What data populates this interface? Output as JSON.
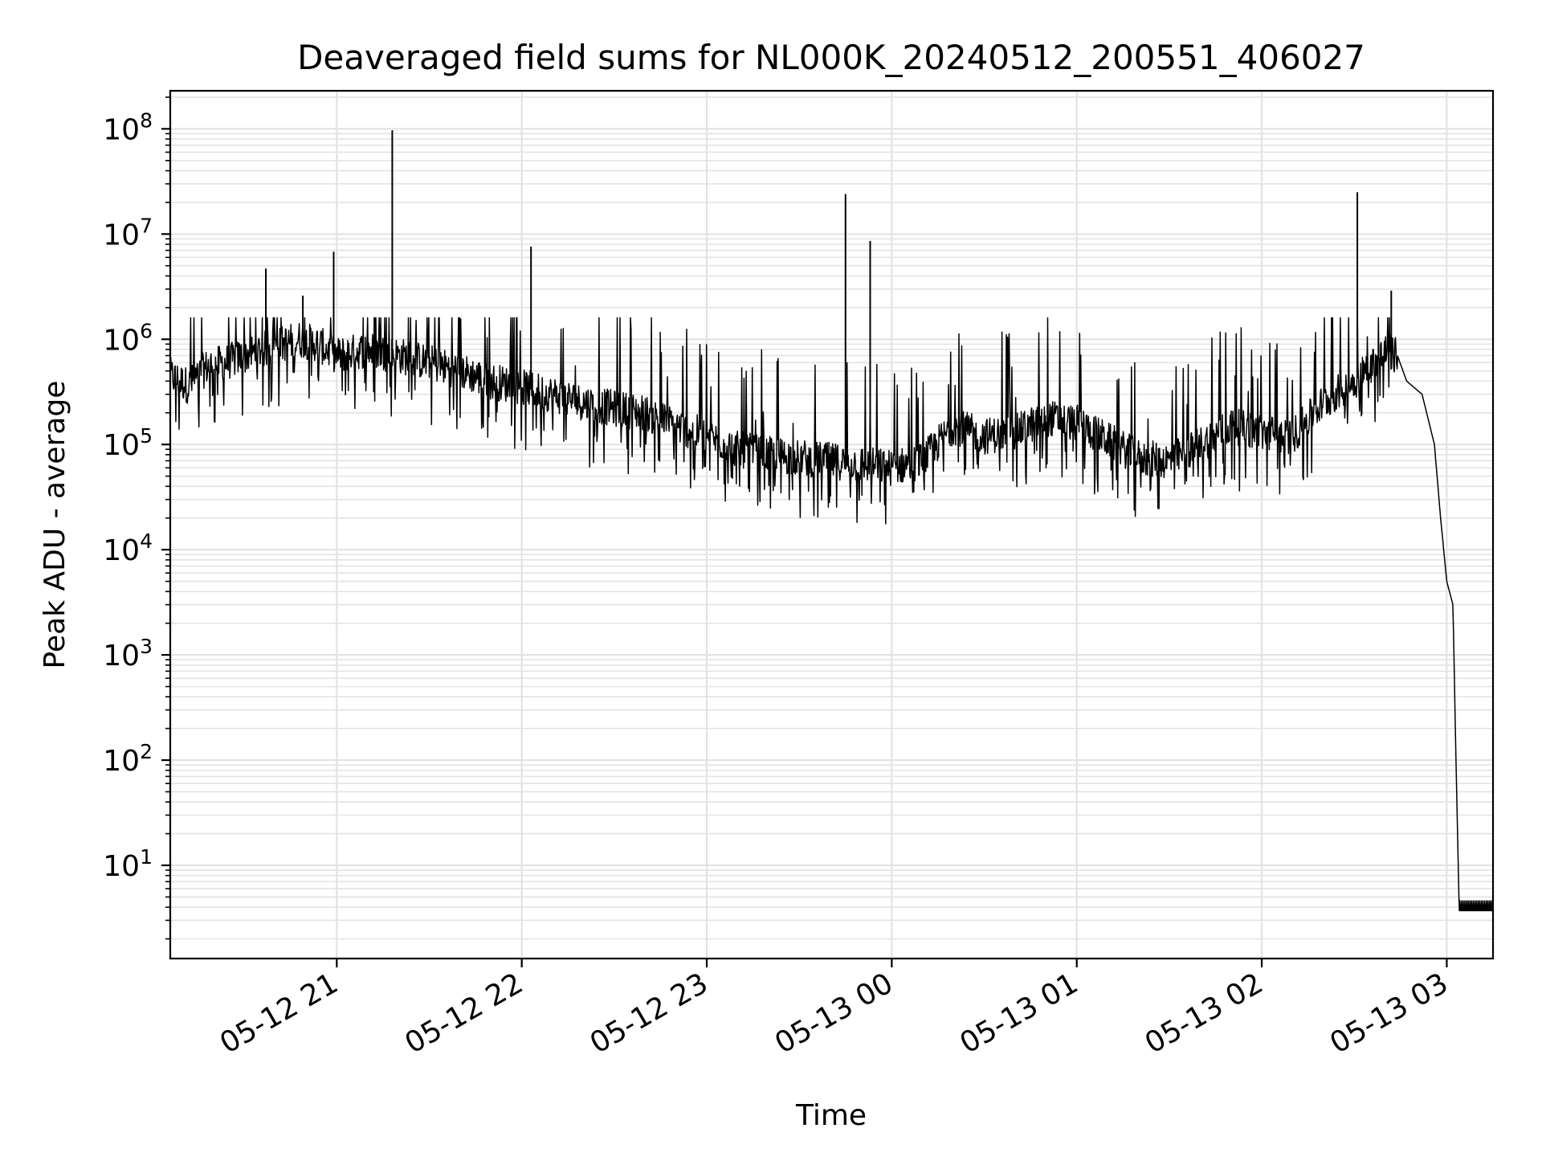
{
  "chart_data": {
    "type": "line",
    "title": "Deaveraged field sums for NL000K_20240512_200551_406027",
    "xlabel": "Time",
    "ylabel": "Peak ADU - average",
    "yscale": "log",
    "grid": "on (major and minor horizontal, major vertical)",
    "xlim": [
      "2024-05-12 20:06",
      "2024-05-13 03:15"
    ],
    "ylim": [
      1.3,
      230000000
    ],
    "x_ticks": [
      {
        "label": "05-12 21",
        "value": "2024-05-12 21:00"
      },
      {
        "label": "05-12 22",
        "value": "2024-05-12 22:00"
      },
      {
        "label": "05-12 23",
        "value": "2024-05-12 23:00"
      },
      {
        "label": "05-13 00",
        "value": "2024-05-13 00:00"
      },
      {
        "label": "05-13 01",
        "value": "2024-05-13 01:00"
      },
      {
        "label": "05-13 02",
        "value": "2024-05-13 02:00"
      },
      {
        "label": "05-13 03",
        "value": "2024-05-13 03:00"
      }
    ],
    "y_ticks": [
      {
        "base": "10",
        "exp": "1",
        "value": 10
      },
      {
        "base": "10",
        "exp": "2",
        "value": 100
      },
      {
        "base": "10",
        "exp": "3",
        "value": 1000
      },
      {
        "base": "10",
        "exp": "4",
        "value": 10000
      },
      {
        "base": "10",
        "exp": "5",
        "value": 100000
      },
      {
        "base": "10",
        "exp": "6",
        "value": 1000000
      },
      {
        "base": "10",
        "exp": "7",
        "value": 10000000
      },
      {
        "base": "10",
        "exp": "8",
        "value": 100000000
      }
    ],
    "series": [
      {
        "color": "#000000",
        "points": [
          [
            "2024-05-12 20:06",
            450000
          ],
          [
            "2024-05-12 20:12",
            360000
          ],
          [
            "2024-05-12 20:18",
            550000
          ],
          [
            "2024-05-12 20:24",
            600000
          ],
          [
            "2024-05-12 20:30",
            700000
          ],
          [
            "2024-05-12 20:36",
            800000
          ],
          [
            "2024-05-12 20:42",
            900000
          ],
          [
            "2024-05-12 20:48",
            1000000
          ],
          [
            "2024-05-12 20:54",
            900000
          ],
          [
            "2024-05-12 21:00",
            700000
          ],
          [
            "2024-05-12 21:10",
            800000
          ],
          [
            "2024-05-12 21:20",
            700000
          ],
          [
            "2024-05-12 21:30",
            600000
          ],
          [
            "2024-05-12 21:40",
            500000
          ],
          [
            "2024-05-12 21:50",
            400000
          ],
          [
            "2024-05-12 22:00",
            350000
          ],
          [
            "2024-05-12 22:10",
            300000
          ],
          [
            "2024-05-12 22:20",
            250000
          ],
          [
            "2024-05-12 22:30",
            220000
          ],
          [
            "2024-05-12 22:40",
            200000
          ],
          [
            "2024-05-12 22:50",
            150000
          ],
          [
            "2024-05-12 23:00",
            120000
          ],
          [
            "2024-05-12 23:10",
            90000
          ],
          [
            "2024-05-12 23:20",
            80000
          ],
          [
            "2024-05-12 23:30",
            75000
          ],
          [
            "2024-05-12 23:40",
            70000
          ],
          [
            "2024-05-12 23:50",
            65000
          ],
          [
            "2024-05-13 00:00",
            60000
          ],
          [
            "2024-05-13 00:10",
            70000
          ],
          [
            "2024-05-13 00:20",
            150000
          ],
          [
            "2024-05-13 00:30",
            120000
          ],
          [
            "2024-05-13 00:40",
            130000
          ],
          [
            "2024-05-13 00:50",
            180000
          ],
          [
            "2024-05-13 01:00",
            160000
          ],
          [
            "2024-05-13 01:10",
            110000
          ],
          [
            "2024-05-13 01:20",
            75000
          ],
          [
            "2024-05-13 01:30",
            70000
          ],
          [
            "2024-05-13 01:40",
            100000
          ],
          [
            "2024-05-13 01:50",
            150000
          ],
          [
            "2024-05-13 02:00",
            130000
          ],
          [
            "2024-05-13 02:10",
            120000
          ],
          [
            "2024-05-13 02:20",
            250000
          ],
          [
            "2024-05-13 02:30",
            400000
          ],
          [
            "2024-05-13 02:40",
            750000
          ],
          [
            "2024-05-13 02:44",
            700000
          ],
          [
            "2024-05-13 02:47",
            400000
          ],
          [
            "2024-05-13 02:52",
            300000
          ],
          [
            "2024-05-13 02:56",
            100000
          ],
          [
            "2024-05-13 02:58",
            20000
          ],
          [
            "2024-05-13 03:00",
            5000
          ],
          [
            "2024-05-13 03:02",
            3000
          ],
          [
            "2024-05-13 03:03",
            100
          ],
          [
            "2024-05-13 03:04",
            4
          ],
          [
            "2024-05-13 03:15",
            4
          ]
        ],
        "spikes": [
          [
            "2024-05-12 20:37",
            4700000
          ],
          [
            "2024-05-12 20:49",
            2600000
          ],
          [
            "2024-05-12 20:59",
            6800000
          ],
          [
            "2024-05-12 21:18",
            97000000
          ],
          [
            "2024-05-12 22:03",
            7600000
          ],
          [
            "2024-05-12 23:45",
            24000000
          ],
          [
            "2024-05-12 23:53",
            8600000
          ],
          [
            "2024-05-13 02:31",
            25000000
          ],
          [
            "2024-05-13 02:42",
            2900000
          ]
        ]
      }
    ]
  }
}
